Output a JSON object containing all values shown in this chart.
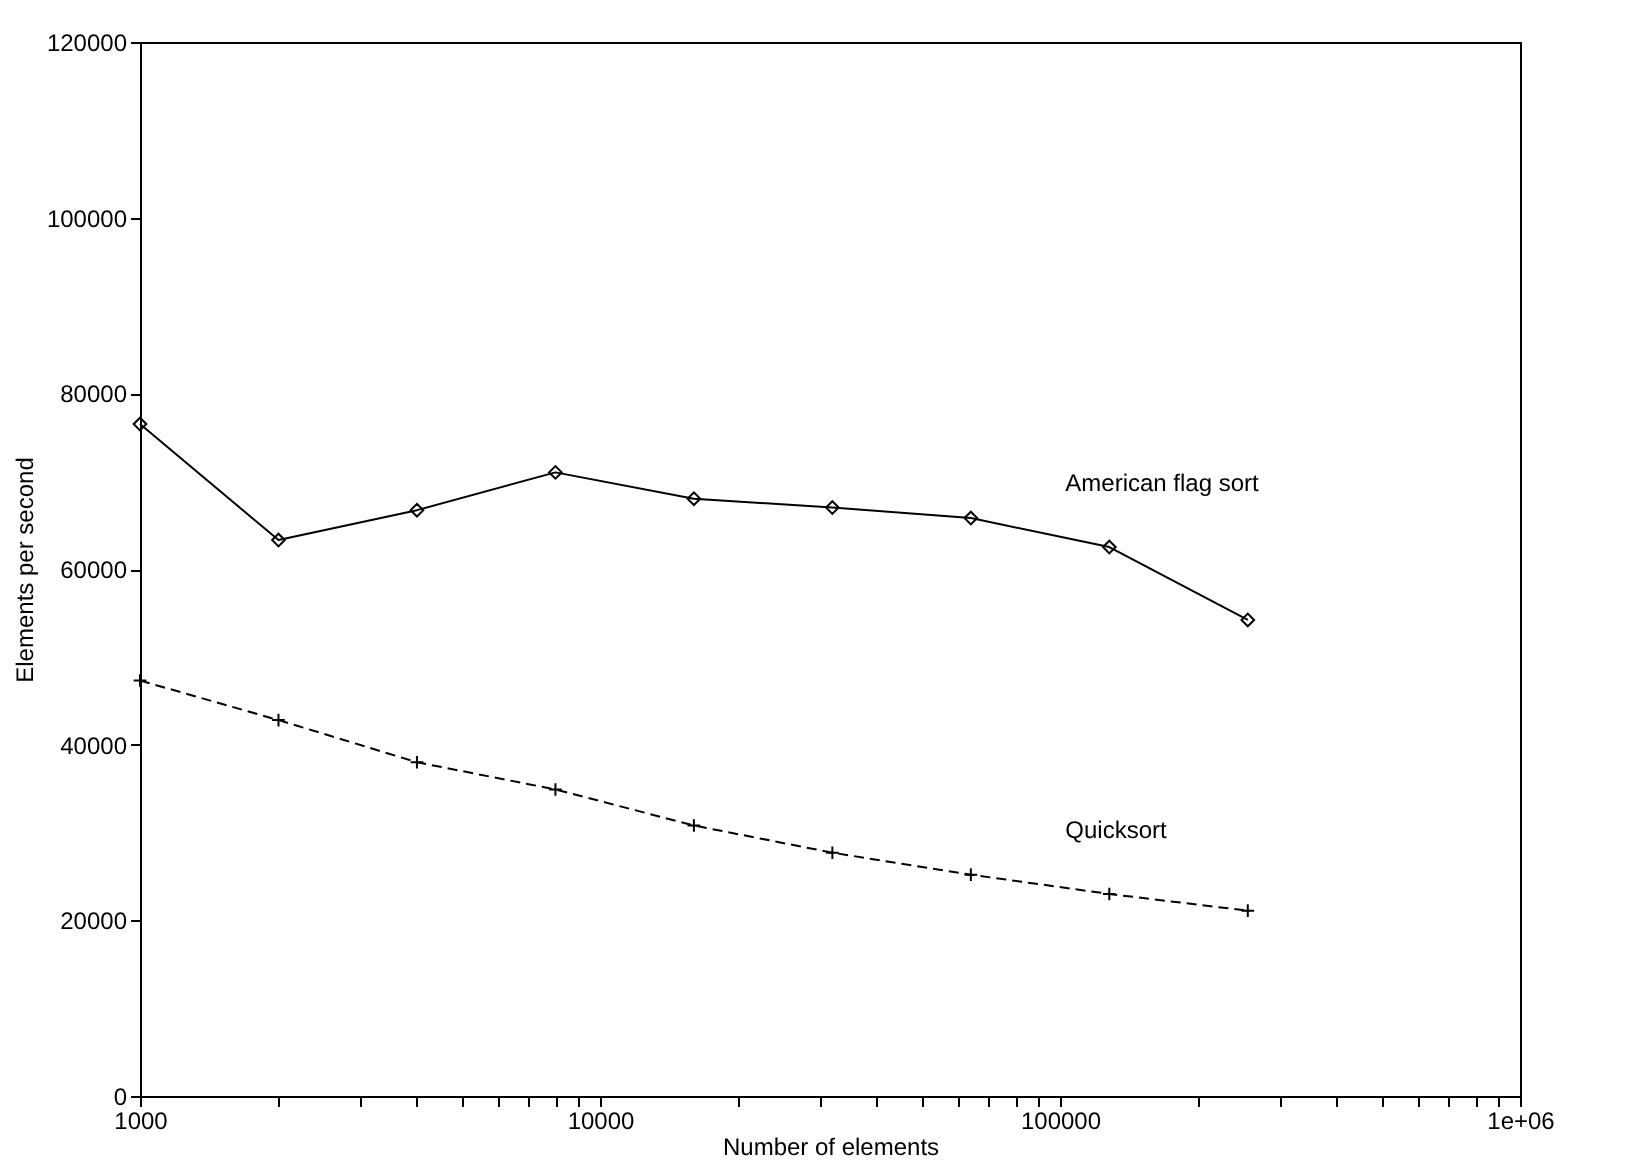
{
  "chart_data": {
    "type": "line",
    "xlabel": "Number of elements",
    "ylabel": "Elements per second",
    "log": "x",
    "grid": false,
    "xlim": [
      1000,
      1000000
    ],
    "ylim": [
      0,
      120000
    ],
    "xticks": [
      1000,
      {
        "value": 2000,
        "label": null
      },
      {
        "value": 3000,
        "label": null
      },
      {
        "value": 4000,
        "label": null
      },
      {
        "value": 5000,
        "label": null
      },
      {
        "value": 6000,
        "label": null
      },
      {
        "value": 7000,
        "label": null
      },
      {
        "value": 8000,
        "label": null
      },
      {
        "value": 9000,
        "label": null
      },
      10000,
      {
        "value": 20000,
        "label": null
      },
      {
        "value": 30000,
        "label": null
      },
      {
        "value": 40000,
        "label": null
      },
      {
        "value": 50000,
        "label": null
      },
      {
        "value": 60000,
        "label": null
      },
      {
        "value": 70000,
        "label": null
      },
      {
        "value": 80000,
        "label": null
      },
      {
        "value": 90000,
        "label": null
      },
      100000,
      {
        "value": 200000,
        "label": null
      },
      {
        "value": 300000,
        "label": null
      },
      {
        "value": 400000,
        "label": null
      },
      {
        "value": 500000,
        "label": null
      },
      {
        "value": 600000,
        "label": null
      },
      {
        "value": 700000,
        "label": null
      },
      {
        "value": 800000,
        "label": null
      },
      {
        "value": 900000,
        "label": null
      },
      {
        "value": 1000000,
        "label": "1e+06"
      }
    ],
    "yticks": [
      0,
      20000,
      40000,
      60000,
      80000,
      100000,
      120000
    ],
    "x": [
      1000,
      2000,
      4000,
      8000,
      16000,
      32000,
      64000,
      128000,
      256000
    ],
    "series": [
      {
        "name": "American flag sort",
        "color": "#000000",
        "marker": "diamond",
        "line_style": "solid",
        "values": [
          76500,
          63300,
          66700,
          71000,
          68000,
          67000,
          65800,
          62500,
          54200
        ]
      },
      {
        "name": "Quicksort",
        "color": "#000000",
        "marker": "cross",
        "line_style": "dashed",
        "values": [
          47300,
          42800,
          38000,
          34900,
          30800,
          27700,
          25200,
          23000,
          21100
        ]
      }
    ]
  }
}
